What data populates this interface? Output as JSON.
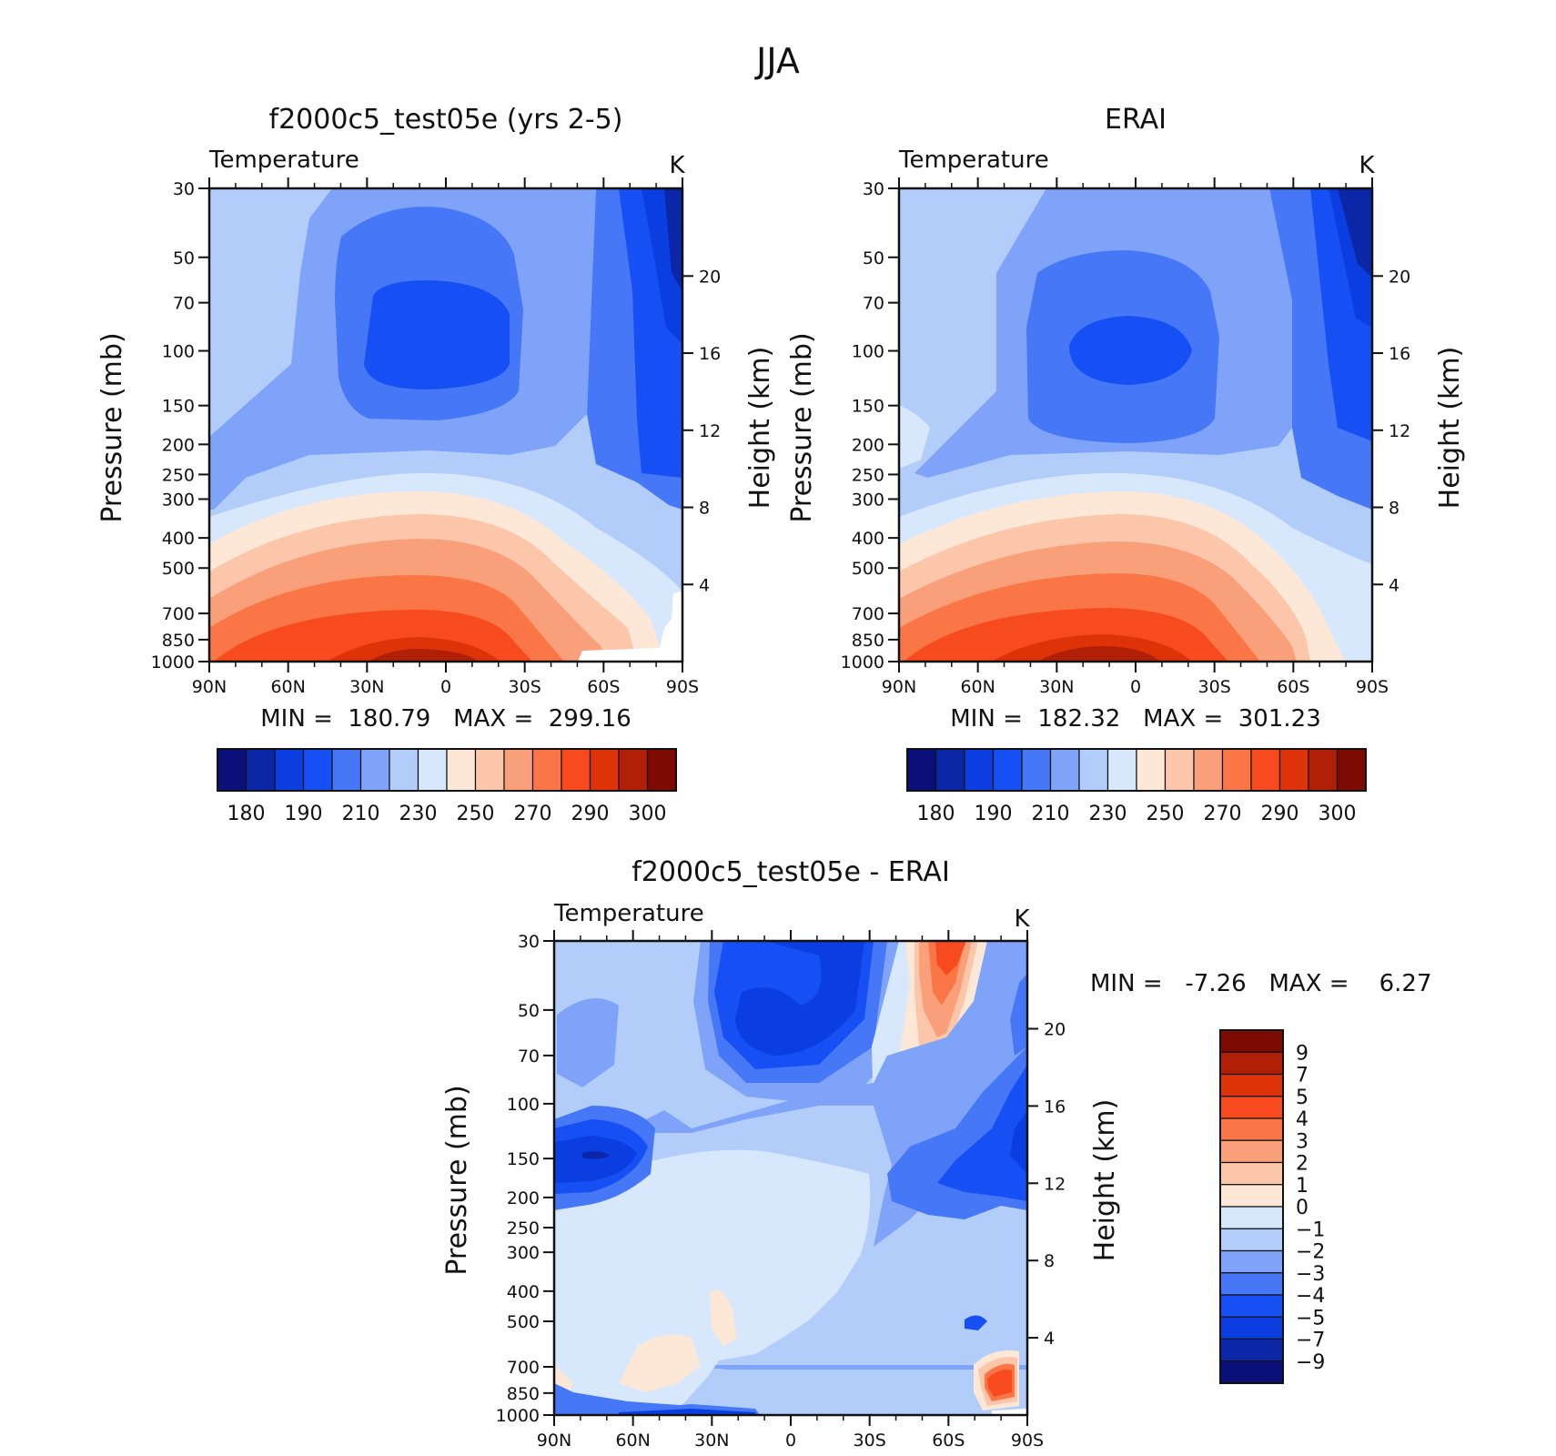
{
  "figure": {
    "title": "JJA",
    "palette": {
      "abs_colors": [
        "#0a0f7a",
        "#0b26a7",
        "#0a3ee0",
        "#1650f5",
        "#4677f7",
        "#7ea3f9",
        "#b3cdfb",
        "#d8e8fc",
        "#fde7d6",
        "#fbc6a9",
        "#f9a07a",
        "#fb7646",
        "#f74a1e",
        "#de3309",
        "#b21f07",
        "#7d0a03"
      ],
      "diff_colors": [
        "#0a0f7a",
        "#0b26a7",
        "#0a3ee0",
        "#1650f5",
        "#4677f7",
        "#7ea3f9",
        "#b3cdfb",
        "#d8e8fc",
        "#fde7d6",
        "#fbc6a9",
        "#f9a07a",
        "#fb7646",
        "#f74a1e",
        "#de3309",
        "#b21f07",
        "#7d0a03"
      ]
    }
  },
  "chart_data": [
    {
      "type": "contour",
      "title": "f2000c5_test05e (yrs 2-5)",
      "left_label": "Temperature",
      "right_label": "K",
      "ylabel": "Pressure (mb)",
      "ylabel_right": "Height (km)",
      "x_ticks": [
        "90N",
        "60N",
        "30N",
        "0",
        "30S",
        "60S",
        "90S"
      ],
      "y_ticks": [
        30,
        50,
        70,
        100,
        150,
        200,
        250,
        300,
        400,
        500,
        700,
        850,
        1000
      ],
      "y_ticks_right": [
        4,
        8,
        12,
        16,
        20
      ],
      "y_scale": "log",
      "ylim": [
        1000,
        30
      ],
      "stats": "MIN =  180.79   MAX =  299.16",
      "min": 180.79,
      "max": 299.16,
      "colorbar_orientation": "horizontal",
      "colorbar_labels": [
        "180",
        "190",
        "210",
        "230",
        "250",
        "270",
        "290",
        "300"
      ]
    },
    {
      "type": "contour",
      "title": "ERAI",
      "left_label": "Temperature",
      "right_label": "K",
      "ylabel": "Pressure (mb)",
      "ylabel_right": "Height (km)",
      "x_ticks": [
        "90N",
        "60N",
        "30N",
        "0",
        "30S",
        "60S",
        "90S"
      ],
      "y_ticks": [
        30,
        50,
        70,
        100,
        150,
        200,
        250,
        300,
        400,
        500,
        700,
        850,
        1000
      ],
      "y_ticks_right": [
        4,
        8,
        12,
        16,
        20
      ],
      "y_scale": "log",
      "ylim": [
        1000,
        30
      ],
      "stats": "MIN =  182.32   MAX =  301.23",
      "min": 182.32,
      "max": 301.23,
      "colorbar_orientation": "horizontal",
      "colorbar_labels": [
        "180",
        "190",
        "210",
        "230",
        "250",
        "270",
        "290",
        "300"
      ]
    },
    {
      "type": "contour",
      "title": "f2000c5_test05e - ERAI",
      "left_label": "Temperature",
      "right_label": "K",
      "ylabel": "Pressure (mb)",
      "ylabel_right": "Height (km)",
      "x_ticks": [
        "90N",
        "60N",
        "30N",
        "0",
        "30S",
        "60S",
        "90S"
      ],
      "y_ticks": [
        30,
        50,
        70,
        100,
        150,
        200,
        250,
        300,
        400,
        500,
        700,
        850,
        1000
      ],
      "y_ticks_right": [
        4,
        8,
        12,
        16,
        20
      ],
      "y_scale": "log",
      "ylim": [
        1000,
        30
      ],
      "stats": "MIN =   -7.26   MAX =    6.27",
      "min": -7.26,
      "max": 6.27,
      "colorbar_orientation": "vertical",
      "colorbar_labels": [
        "9",
        "7",
        "5",
        "4",
        "3",
        "2",
        "1",
        "0",
        "-1",
        "-2",
        "-3",
        "-4",
        "-5",
        "-7",
        "-9"
      ]
    }
  ]
}
